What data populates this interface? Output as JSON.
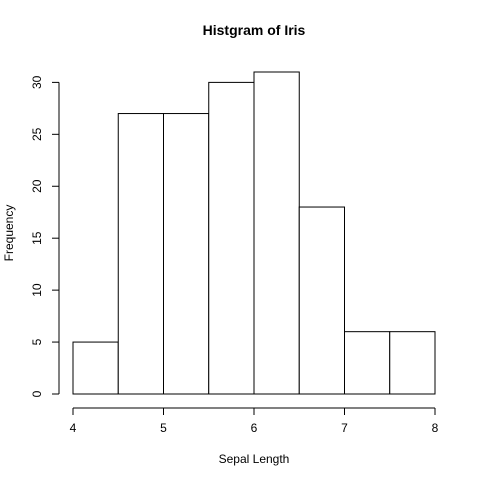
{
  "chart_data": {
    "type": "bar",
    "title": "Histgram of Iris",
    "xlabel": "Sepal Length",
    "ylabel": "Frequency",
    "bins": [
      {
        "start": 4.0,
        "end": 4.5,
        "count": 5
      },
      {
        "start": 4.5,
        "end": 5.0,
        "count": 27
      },
      {
        "start": 5.0,
        "end": 5.5,
        "count": 27
      },
      {
        "start": 5.5,
        "end": 6.0,
        "count": 30
      },
      {
        "start": 6.0,
        "end": 6.5,
        "count": 31
      },
      {
        "start": 6.5,
        "end": 7.0,
        "count": 18
      },
      {
        "start": 7.0,
        "end": 7.5,
        "count": 6
      },
      {
        "start": 7.5,
        "end": 8.0,
        "count": 6
      }
    ],
    "xlim": [
      4,
      8
    ],
    "ylim": [
      0,
      31
    ],
    "x_ticks": [
      "4",
      "5",
      "6",
      "7",
      "8"
    ],
    "y_ticks": [
      "0",
      "5",
      "10",
      "15",
      "20",
      "25",
      "30"
    ],
    "grid": false,
    "colors": {
      "bar_fill": "#ffffff",
      "bar_stroke": "#000000"
    }
  }
}
